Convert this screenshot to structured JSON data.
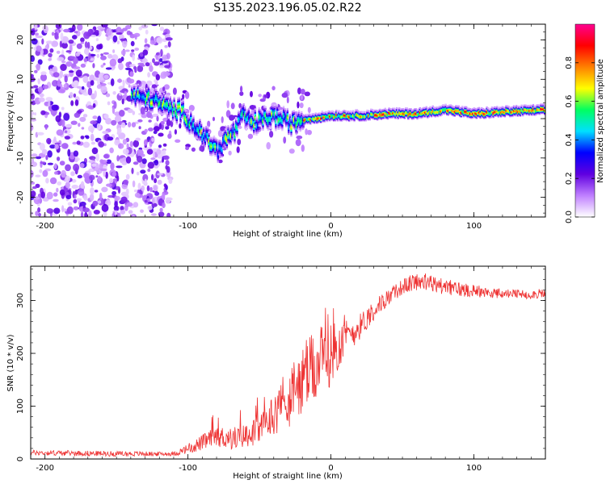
{
  "title": "S135.2023.196.05.02.R22",
  "chart_data": [
    {
      "type": "heatmap",
      "name": "spectrogram",
      "xlabel": "Height of straight line (km)",
      "ylabel": "Frequency (Hz)",
      "xlim": [
        -210,
        150
      ],
      "ylim": [
        -25,
        24
      ],
      "xticks": [
        -200,
        -100,
        0,
        100
      ],
      "xtick_labels": [
        "-200",
        "-100",
        "0",
        "100"
      ],
      "yticks": [
        -20,
        -10,
        0,
        10,
        20
      ],
      "ytick_labels": [
        "-20",
        "-10",
        "0",
        "10",
        "20"
      ],
      "colorbar": {
        "label": "Normalized spectral amplitude",
        "range": [
          0.0,
          1.0
        ],
        "ticks": [
          0.0,
          0.2,
          0.4,
          0.6,
          0.8
        ],
        "tick_labels": [
          "0.0",
          "0.2",
          "0.4",
          "0.6",
          "0.8"
        ],
        "colors": [
          "#ffffff",
          "#c080ff",
          "#6000e0",
          "#0000ff",
          "#00e0ff",
          "#00ff60",
          "#ffff00",
          "#ff8000",
          "#ff0000",
          "#ff0090"
        ]
      },
      "ridge": {
        "x": [
          -140,
          -125,
          -115,
          -105,
          -98,
          -92,
          -85,
          -80,
          -74,
          -68,
          -62,
          -55,
          -48,
          -42,
          -35,
          -28,
          -20,
          -10,
          0,
          20,
          40,
          60,
          80,
          90,
          100,
          120,
          150
        ],
        "freq": [
          6,
          5,
          3,
          2,
          -1,
          -3,
          -6,
          -8,
          -5,
          -3,
          1,
          -1,
          0,
          1,
          0,
          -1,
          0,
          0.5,
          1,
          1,
          1.5,
          1.5,
          2.5,
          2,
          1.5,
          2,
          2.5
        ]
      },
      "noise_region": [
        -210,
        -112
      ]
    },
    {
      "type": "line",
      "name": "snr",
      "xlabel": "Height of straight line (km)",
      "ylabel": "SNR (10 * v/v)",
      "xlim": [
        -210,
        150
      ],
      "ylim": [
        0,
        365
      ],
      "xticks": [
        -200,
        -100,
        0,
        100
      ],
      "xtick_labels": [
        "-200",
        "-100",
        "0",
        "100"
      ],
      "yticks": [
        0,
        100,
        200,
        300
      ],
      "ytick_labels": [
        "0",
        "100",
        "200",
        "300"
      ],
      "color": "#ee3333",
      "envelope": {
        "x": [
          -210,
          -150,
          -110,
          -100,
          -90,
          -80,
          -70,
          -60,
          -50,
          -40,
          -30,
          -20,
          -10,
          0,
          10,
          20,
          30,
          40,
          50,
          60,
          70,
          80,
          90,
          100,
          110,
          120,
          130,
          140,
          150
        ],
        "base": [
          10,
          8,
          8,
          15,
          25,
          35,
          30,
          35,
          45,
          70,
          90,
          120,
          150,
          175,
          215,
          240,
          275,
          300,
          320,
          330,
          325,
          320,
          315,
          315,
          310,
          310,
          308,
          308,
          310
        ],
        "amp": [
          10,
          10,
          8,
          20,
          30,
          40,
          45,
          45,
          55,
          80,
          110,
          130,
          140,
          120,
          70,
          50,
          40,
          30,
          30,
          35,
          35,
          30,
          30,
          25,
          20,
          18,
          18,
          18,
          18
        ]
      }
    }
  ]
}
